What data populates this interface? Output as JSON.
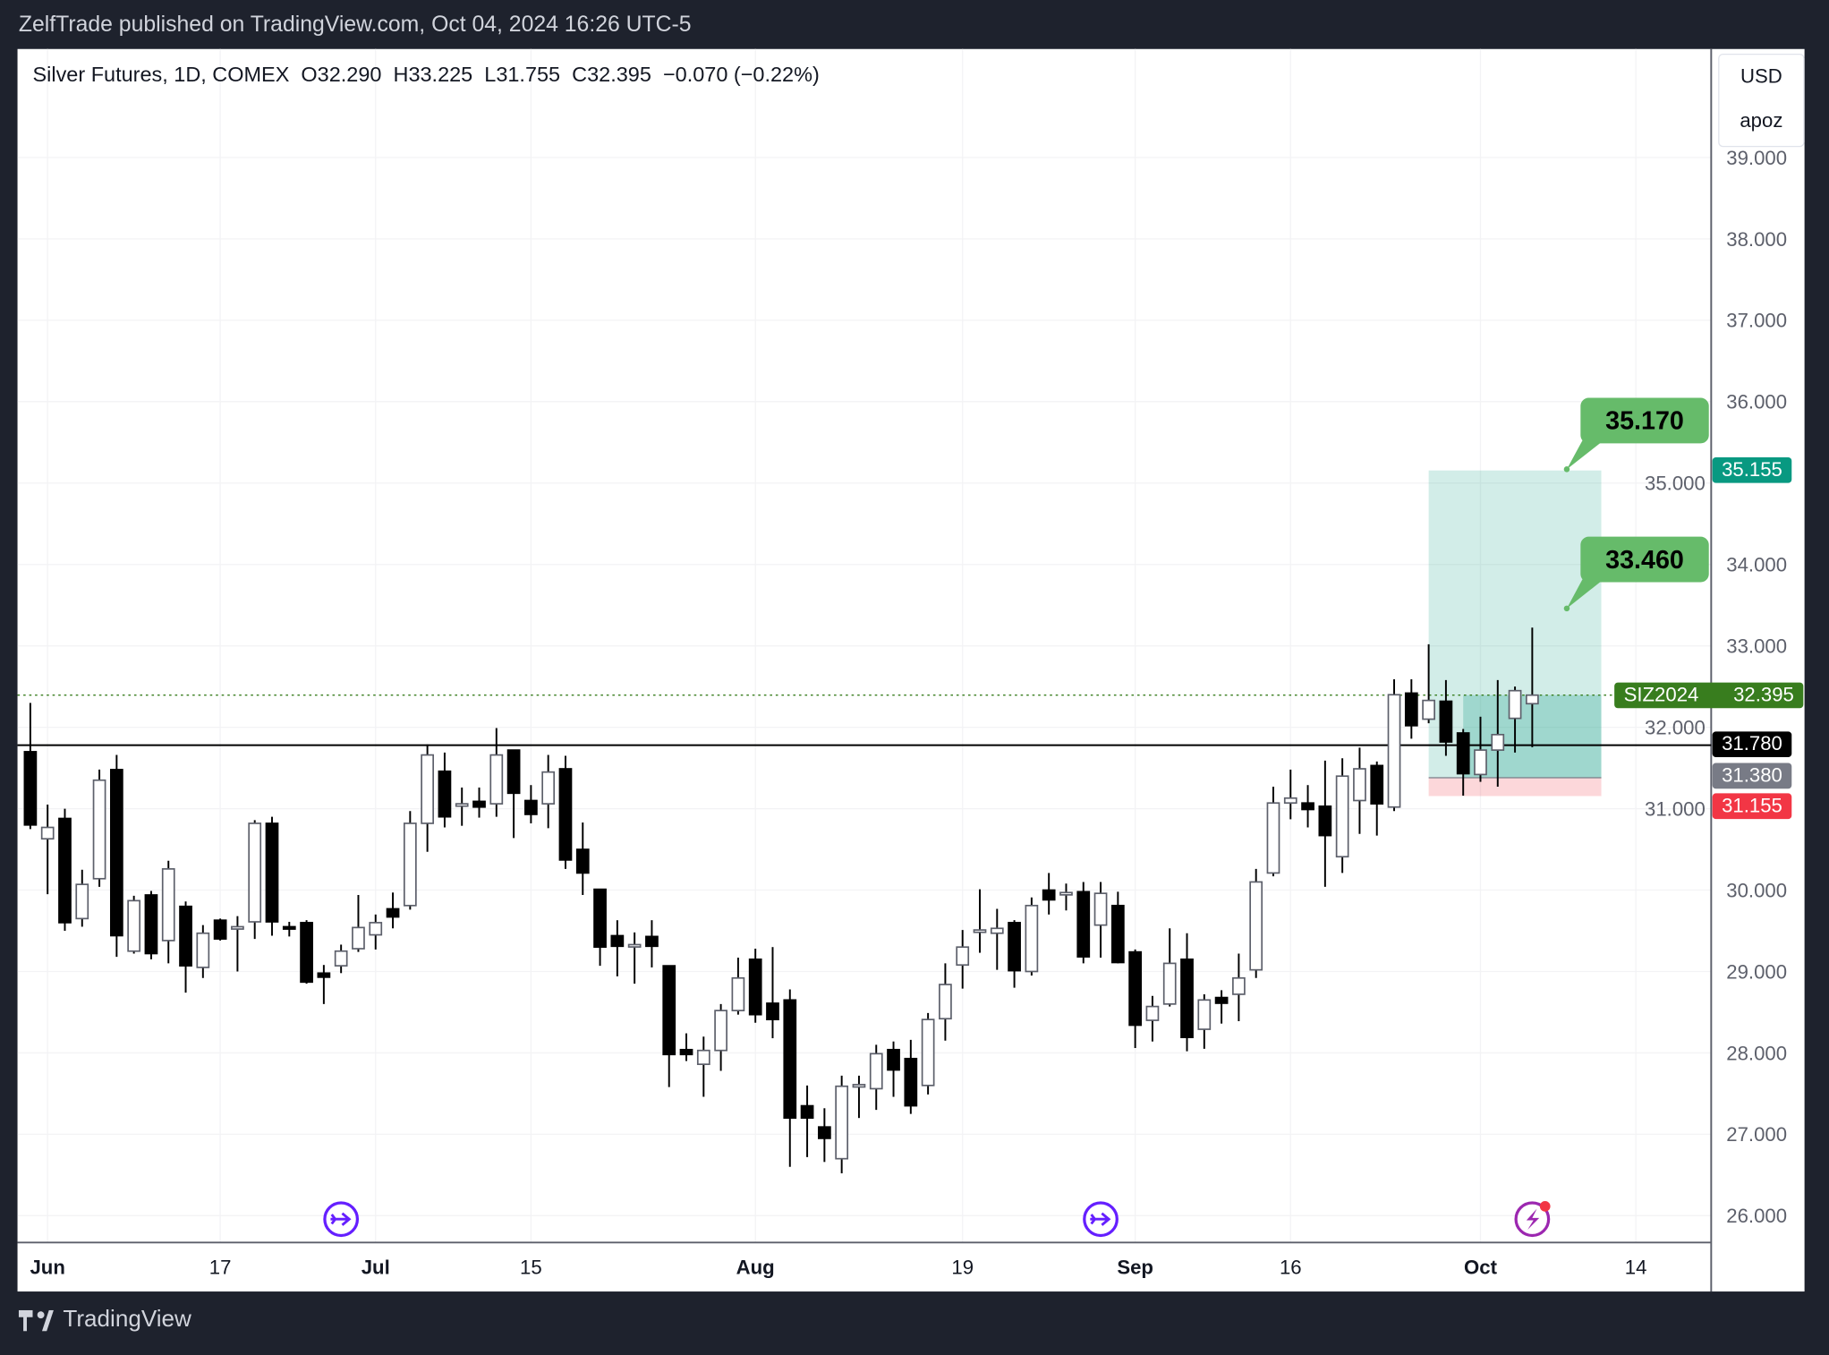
{
  "header": {
    "published": "ZelfTrade published on TradingView.com, Oct 04, 2024 16:26 UTC-5"
  },
  "legend": {
    "symbol": "Silver Futures, 1D, COMEX",
    "open": "O32.290",
    "high": "H33.225",
    "low": "L31.755",
    "close": "C32.395",
    "change": "−0.070 (−0.22%)"
  },
  "scale_box": {
    "currency": "USD",
    "mode": "apoz"
  },
  "footer": {
    "brand": "TradingView"
  },
  "colors": {
    "up_fill": "#ffffff",
    "up_stroke": "#5d606b",
    "down": "#000000",
    "target_zone": "#089981",
    "stop_zone": "#f23645",
    "callout": "#66bb6a",
    "last_price": "#387d1e"
  },
  "price_labels": {
    "target": {
      "value": "35.155",
      "color": "#089981"
    },
    "last": {
      "symbol": "SIZ2024",
      "value": "32.395",
      "color": "#387d1e"
    },
    "line": {
      "value": "31.780",
      "color": "#000000"
    },
    "entry": {
      "value": "31.380",
      "color": "#787b86"
    },
    "stop": {
      "value": "31.155",
      "color": "#f23645"
    }
  },
  "callouts": [
    {
      "value": "35.170"
    },
    {
      "value": "33.460"
    }
  ],
  "chart_data": {
    "type": "candlestick",
    "title": "Silver Futures, 1D, COMEX",
    "ylim": [
      25.6,
      39.6
    ],
    "y_ticks": [
      "26.000",
      "27.000",
      "28.000",
      "29.000",
      "30.000",
      "31.000",
      "32.000",
      "33.000",
      "34.000",
      "35.000",
      "36.000",
      "37.000",
      "38.000",
      "39.000"
    ],
    "x_ticks": [
      {
        "label": "Jun",
        "bar": 1,
        "bold": true
      },
      {
        "label": "17",
        "bar": 11,
        "bold": false
      },
      {
        "label": "Jul",
        "bar": 20,
        "bold": true
      },
      {
        "label": "15",
        "bar": 29,
        "bold": false
      },
      {
        "label": "Aug",
        "bar": 42,
        "bold": true
      },
      {
        "label": "19",
        "bar": 54,
        "bold": false
      },
      {
        "label": "Sep",
        "bar": 64,
        "bold": true
      },
      {
        "label": "16",
        "bar": 73,
        "bold": false
      },
      {
        "label": "Oct",
        "bar": 84,
        "bold": true
      },
      {
        "label": "14",
        "bar": 93,
        "bold": false
      }
    ],
    "horizontal_line": 31.78,
    "last_price": 32.395,
    "position": {
      "entry": 31.38,
      "target": 35.155,
      "stop": 31.155,
      "start_bar": 81,
      "end_bar": 91,
      "current_start_bar": 83
    },
    "callout_bar": 89,
    "callout_prices": [
      35.17,
      33.46
    ],
    "event_icons": [
      {
        "type": "dividend-arrow",
        "bar": 18
      },
      {
        "type": "dividend-arrow",
        "bar": 62
      },
      {
        "type": "lightning",
        "bar": 87
      }
    ],
    "candles_ohlc": [
      [
        31.7,
        32.3,
        30.75,
        30.8
      ],
      [
        30.63,
        31.05,
        29.95,
        30.77
      ],
      [
        30.88,
        31.0,
        29.5,
        29.6
      ],
      [
        29.65,
        30.25,
        29.55,
        30.07
      ],
      [
        30.14,
        31.48,
        30.04,
        31.35
      ],
      [
        31.48,
        31.66,
        29.18,
        29.44
      ],
      [
        29.25,
        29.93,
        29.22,
        29.87
      ],
      [
        29.94,
        29.99,
        29.15,
        29.22
      ],
      [
        29.38,
        30.36,
        29.1,
        30.26
      ],
      [
        29.8,
        29.86,
        28.74,
        29.07
      ],
      [
        29.05,
        29.57,
        28.92,
        29.47
      ],
      [
        29.63,
        29.65,
        29.38,
        29.4
      ],
      [
        29.54,
        29.68,
        29.0,
        29.55
      ],
      [
        29.61,
        30.86,
        29.4,
        30.82
      ],
      [
        30.82,
        30.9,
        29.44,
        29.61
      ],
      [
        29.55,
        29.61,
        29.43,
        29.54
      ],
      [
        29.6,
        29.63,
        28.85,
        28.87
      ],
      [
        28.98,
        29.08,
        28.6,
        28.93
      ],
      [
        29.07,
        29.33,
        28.98,
        29.25
      ],
      [
        29.28,
        29.94,
        29.24,
        29.54
      ],
      [
        29.45,
        29.7,
        29.27,
        29.6
      ],
      [
        29.77,
        29.97,
        29.53,
        29.67
      ],
      [
        29.81,
        30.97,
        29.76,
        30.82
      ],
      [
        30.82,
        31.79,
        30.47,
        31.66
      ],
      [
        31.46,
        31.69,
        30.77,
        30.9
      ],
      [
        31.05,
        31.26,
        30.79,
        31.06
      ],
      [
        31.09,
        31.26,
        30.89,
        31.02
      ],
      [
        31.06,
        31.99,
        30.9,
        31.66
      ],
      [
        31.72,
        31.72,
        30.64,
        31.19
      ],
      [
        31.1,
        31.29,
        30.82,
        30.93
      ],
      [
        31.06,
        31.66,
        30.76,
        31.45
      ],
      [
        31.49,
        31.65,
        30.26,
        30.37
      ],
      [
        30.5,
        30.83,
        29.94,
        30.21
      ],
      [
        30.01,
        30.01,
        29.07,
        29.3
      ],
      [
        29.44,
        29.63,
        28.94,
        29.31
      ],
      [
        29.32,
        29.48,
        28.85,
        29.33
      ],
      [
        29.43,
        29.63,
        29.05,
        29.31
      ],
      [
        29.07,
        29.07,
        27.58,
        27.98
      ],
      [
        28.04,
        28.24,
        27.9,
        27.98
      ],
      [
        27.86,
        28.2,
        27.46,
        28.03
      ],
      [
        28.03,
        28.6,
        27.78,
        28.52
      ],
      [
        28.52,
        29.17,
        28.47,
        28.92
      ],
      [
        29.15,
        29.28,
        28.37,
        28.47
      ],
      [
        28.61,
        29.3,
        28.18,
        28.41
      ],
      [
        28.65,
        28.78,
        26.6,
        27.2
      ],
      [
        27.35,
        27.6,
        26.72,
        27.2
      ],
      [
        27.09,
        27.32,
        26.66,
        26.95
      ],
      [
        26.7,
        27.72,
        26.52,
        27.59
      ],
      [
        27.6,
        27.72,
        27.2,
        27.61
      ],
      [
        27.56,
        28.1,
        27.3,
        27.99
      ],
      [
        28.04,
        28.14,
        27.46,
        27.79
      ],
      [
        27.93,
        28.16,
        27.25,
        27.35
      ],
      [
        27.6,
        28.49,
        27.49,
        28.41
      ],
      [
        28.42,
        29.1,
        28.15,
        28.84
      ],
      [
        29.08,
        29.51,
        28.79,
        29.3
      ],
      [
        29.5,
        30.01,
        29.23,
        29.51
      ],
      [
        29.47,
        29.77,
        29.02,
        29.53
      ],
      [
        29.6,
        29.63,
        28.8,
        29.01
      ],
      [
        29.0,
        29.91,
        28.95,
        29.81
      ],
      [
        30.0,
        30.21,
        29.7,
        29.88
      ],
      [
        29.95,
        30.08,
        29.75,
        29.97
      ],
      [
        29.98,
        30.1,
        29.1,
        29.18
      ],
      [
        29.57,
        30.1,
        29.17,
        29.96
      ],
      [
        29.81,
        29.98,
        29.1,
        29.11
      ],
      [
        29.24,
        29.27,
        28.06,
        28.34
      ],
      [
        28.4,
        28.7,
        28.14,
        28.57
      ],
      [
        28.6,
        29.53,
        28.57,
        29.1
      ],
      [
        29.15,
        29.47,
        28.02,
        28.19
      ],
      [
        28.29,
        28.72,
        28.05,
        28.65
      ],
      [
        28.68,
        28.77,
        28.36,
        28.61
      ],
      [
        28.72,
        29.22,
        28.39,
        28.92
      ],
      [
        29.02,
        30.26,
        28.92,
        30.1
      ],
      [
        30.21,
        31.27,
        30.17,
        31.07
      ],
      [
        31.07,
        31.48,
        30.87,
        31.13
      ],
      [
        31.07,
        31.29,
        30.77,
        30.99
      ],
      [
        31.03,
        31.59,
        30.04,
        30.67
      ],
      [
        30.41,
        31.62,
        30.21,
        31.4
      ],
      [
        31.1,
        31.75,
        30.69,
        31.49
      ],
      [
        31.53,
        31.58,
        30.67,
        31.06
      ],
      [
        31.02,
        32.59,
        30.97,
        32.4
      ],
      [
        32.42,
        32.59,
        31.86,
        32.02
      ],
      [
        32.1,
        33.02,
        32.05,
        32.33
      ],
      [
        32.32,
        32.58,
        31.65,
        31.82
      ],
      [
        31.93,
        31.98,
        31.16,
        31.43
      ],
      [
        31.42,
        32.13,
        31.33,
        31.72
      ],
      [
        31.72,
        32.58,
        31.27,
        31.91
      ],
      [
        32.11,
        32.5,
        31.69,
        32.45
      ],
      [
        32.29,
        33.225,
        31.755,
        32.395
      ]
    ]
  }
}
